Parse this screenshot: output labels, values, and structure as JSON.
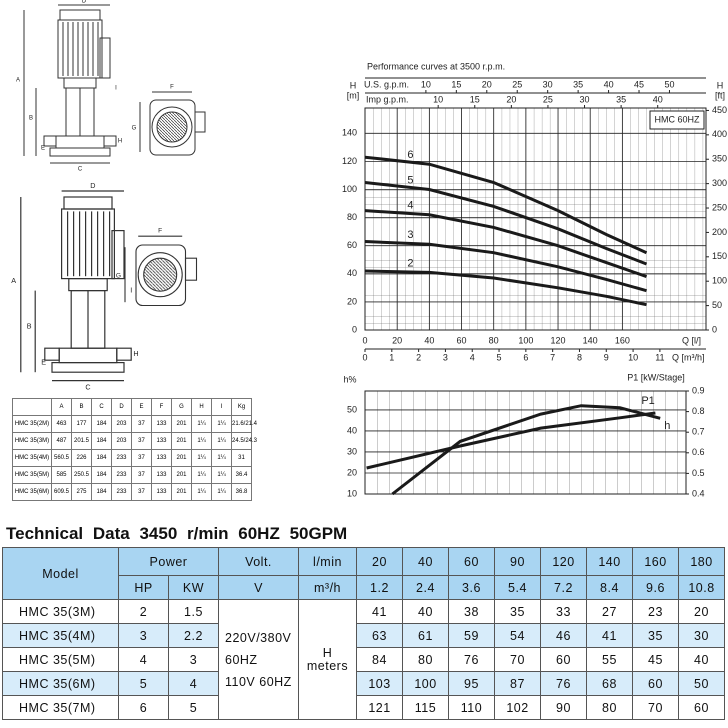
{
  "drawings": {
    "side_views": [
      {
        "labels": [
          "D",
          "A",
          "B",
          "E",
          "C",
          "H",
          "I"
        ]
      },
      {
        "labels": [
          "D",
          "A",
          "B",
          "E",
          "C",
          "H",
          "I"
        ]
      }
    ],
    "top_views": [
      {
        "labels": [
          "F",
          "G"
        ]
      },
      {
        "labels": [
          "F",
          "G"
        ]
      }
    ]
  },
  "dimension_table": {
    "header": [
      "A",
      "B",
      "C",
      "D",
      "E",
      "F",
      "G",
      "H",
      "I",
      "Kg"
    ],
    "rows": [
      [
        "HMC 35(2M)",
        "463",
        "177",
        "184",
        "203",
        "37",
        "133",
        "201",
        "1¼",
        "1¼",
        "21.6/21.4"
      ],
      [
        "HMC 35(3M)",
        "487",
        "201.5",
        "184",
        "203",
        "37",
        "133",
        "201",
        "1¼",
        "1¼",
        "24.5/24.3"
      ],
      [
        "HMC 35(4M)",
        "560.5",
        "226",
        "184",
        "233",
        "37",
        "133",
        "201",
        "1¼",
        "1¼",
        "31"
      ],
      [
        "HMC 35(5M)",
        "585",
        "250.5",
        "184",
        "233",
        "37",
        "133",
        "201",
        "1¼",
        "1¼",
        "36.4"
      ],
      [
        "HMC 35(6M)",
        "609.5",
        "275",
        "184",
        "233",
        "37",
        "133",
        "201",
        "1¼",
        "1¼",
        "36.8"
      ]
    ]
  },
  "performance_chart": {
    "type": "line",
    "title": "Performance curves at 3500 r.p.m.",
    "annotation": "HMC 60HZ",
    "xlabel": "Q [l/]",
    "xlim": [
      0,
      212
    ],
    "xticks": [
      0,
      20,
      40,
      60,
      80,
      100,
      120,
      140,
      160
    ],
    "x2label": "Q [m³/h]",
    "x2lim": [
      0,
      12.72
    ],
    "x2ticks": [
      0,
      1,
      2,
      3,
      4,
      5,
      6,
      7,
      8,
      9,
      10,
      11
    ],
    "x3label": "U.S. g.p.m.",
    "x3lim": [
      0,
      56
    ],
    "x3ticks": [
      10,
      15,
      20,
      25,
      30,
      35,
      40,
      45,
      50
    ],
    "x4label": "Imp g.p.m.",
    "x4lim": [
      0,
      46.6
    ],
    "x4ticks": [
      10,
      15,
      20,
      25,
      30,
      35,
      40
    ],
    "ylabel": "H",
    "yunit": "[m]",
    "ylim": [
      0,
      158
    ],
    "yticks": [
      0,
      20,
      40,
      60,
      80,
      100,
      120,
      140
    ],
    "y2label": "H",
    "y2unit": "[ft]",
    "y2lim": [
      0,
      455
    ],
    "y2ticks": [
      0,
      50,
      100,
      150,
      200,
      250,
      300,
      350,
      400,
      450
    ],
    "grid": true,
    "x": [
      0,
      40,
      80,
      120,
      150,
      175
    ],
    "series": [
      {
        "name": "2",
        "color": "#1a1a1a",
        "values": [
          42,
          41,
          37,
          30,
          24,
          18
        ]
      },
      {
        "name": "3",
        "color": "#1a1a1a",
        "values": [
          63,
          61,
          55,
          45,
          36,
          28
        ]
      },
      {
        "name": "4",
        "color": "#1a1a1a",
        "values": [
          85,
          82,
          73,
          60,
          48,
          38
        ]
      },
      {
        "name": "5",
        "color": "#1a1a1a",
        "values": [
          105,
          100,
          88,
          72,
          58,
          47
        ]
      },
      {
        "name": "6",
        "color": "#1a1a1a",
        "values": [
          123,
          118,
          105,
          85,
          68,
          55
        ]
      }
    ]
  },
  "efficiency_chart": {
    "type": "line",
    "ylabel": "h%",
    "ylim": [
      10,
      59
    ],
    "yticks": [
      10,
      20,
      30,
      40,
      50
    ],
    "y2label": "P1 [kW/Stage]",
    "y2lim": [
      0.4,
      0.9
    ],
    "y2ticks": [
      0.4,
      0.5,
      0.6,
      0.7,
      0.8,
      0.9
    ],
    "xlim": [
      0,
      199
    ],
    "grid": true,
    "series": [
      {
        "name": "h",
        "color": "#1a1a1a",
        "x": [
          17,
          59,
          109,
          134,
          158,
          183
        ],
        "values": [
          10,
          35,
          48,
          52,
          51,
          46
        ]
      },
      {
        "name": "P1",
        "color": "#1a1a1a",
        "axis": "y2",
        "x": [
          1,
          59,
          109,
          158,
          180
        ],
        "values": [
          0.526,
          0.633,
          0.72,
          0.77,
          0.793
        ]
      }
    ]
  },
  "technical_data": {
    "title": "Technical Data 3450 r/min 60HZ 50GPM",
    "header": {
      "model": "Model",
      "power": "Power",
      "hp": "HP",
      "kw": "KW",
      "volt": "Volt.",
      "v": "V",
      "flow_lmin": "l/min",
      "flow_m3h": "m³/h",
      "flow_lmin_values": [
        20,
        40,
        60,
        90,
        120,
        140,
        160,
        180
      ],
      "flow_m3h_values": [
        1.2,
        2.4,
        3.6,
        5.4,
        7.2,
        8.4,
        9.6,
        10.8
      ]
    },
    "voltage": [
      "220V/380V",
      "60HZ",
      "110V 60HZ"
    ],
    "head_label": [
      "H",
      "meters"
    ],
    "rows": [
      {
        "model": "HMC 35(3M)",
        "hp": 2,
        "kw": 1.5,
        "head": [
          41,
          40,
          38,
          35,
          33,
          27,
          23,
          20
        ]
      },
      {
        "model": "HMC 35(4M)",
        "hp": 3,
        "kw": 2.2,
        "head": [
          63,
          61,
          59,
          54,
          46,
          41,
          35,
          30
        ]
      },
      {
        "model": "HMC 35(5M)",
        "hp": 4,
        "kw": 3,
        "head": [
          84,
          80,
          76,
          70,
          60,
          55,
          45,
          40
        ]
      },
      {
        "model": "HMC 35(6M)",
        "hp": 5,
        "kw": 4,
        "head": [
          103,
          100,
          95,
          87,
          76,
          68,
          60,
          50
        ]
      },
      {
        "model": "HMC 35(7M)",
        "hp": 6,
        "kw": 5,
        "head": [
          121,
          115,
          110,
          102,
          90,
          80,
          70,
          60
        ]
      }
    ]
  }
}
